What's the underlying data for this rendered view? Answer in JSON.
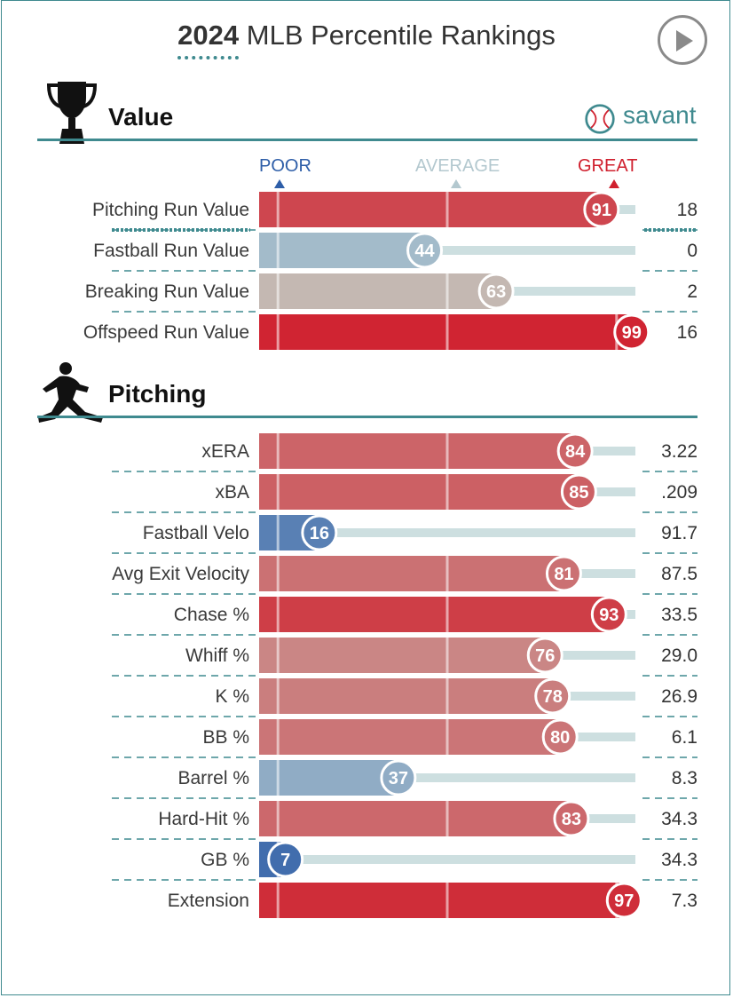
{
  "title": {
    "year": "2024",
    "text": "MLB Percentile Rankings"
  },
  "logo_text": "savant",
  "header": {
    "poor": "POOR",
    "average": "AVERAGE",
    "great": "GREAT"
  },
  "colors": {
    "accent": "#3f8a8f",
    "poor": "#2e5ea8",
    "average": "#b3c8cf",
    "great": "#d0202e"
  },
  "chart_data": {
    "type": "bar",
    "title": "2024 MLB Percentile Rankings",
    "xlim": [
      0,
      100
    ],
    "sections": [
      {
        "name": "Value",
        "icon": "trophy-icon",
        "metrics": [
          {
            "label": "Pitching Run Value",
            "percentile": 91,
            "value": "18",
            "emphasized": true
          },
          {
            "label": "Fastball Run Value",
            "percentile": 44,
            "value": "0"
          },
          {
            "label": "Breaking Run Value",
            "percentile": 63,
            "value": "2"
          },
          {
            "label": "Offspeed Run Value",
            "percentile": 99,
            "value": "16"
          }
        ]
      },
      {
        "name": "Pitching",
        "icon": "pitcher-icon",
        "metrics": [
          {
            "label": "xERA",
            "percentile": 84,
            "value": "3.22"
          },
          {
            "label": "xBA",
            "percentile": 85,
            "value": ".209"
          },
          {
            "label": "Fastball Velo",
            "percentile": 16,
            "value": "91.7"
          },
          {
            "label": "Avg Exit Velocity",
            "percentile": 81,
            "value": "87.5"
          },
          {
            "label": "Chase %",
            "percentile": 93,
            "value": "33.5"
          },
          {
            "label": "Whiff %",
            "percentile": 76,
            "value": "29.0"
          },
          {
            "label": "K %",
            "percentile": 78,
            "value": "26.9"
          },
          {
            "label": "BB %",
            "percentile": 80,
            "value": "6.1"
          },
          {
            "label": "Barrel %",
            "percentile": 37,
            "value": "8.3"
          },
          {
            "label": "Hard-Hit %",
            "percentile": 83,
            "value": "34.3"
          },
          {
            "label": "GB %",
            "percentile": 7,
            "value": "34.3"
          },
          {
            "label": "Extension",
            "percentile": 97,
            "value": "7.3"
          }
        ]
      }
    ]
  }
}
